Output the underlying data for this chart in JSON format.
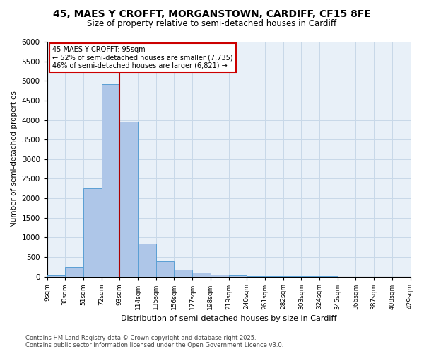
{
  "title_line1": "45, MAES Y CROFFT, MORGANSTOWN, CARDIFF, CF15 8FE",
  "title_line2": "Size of property relative to semi-detached houses in Cardiff",
  "xlabel": "Distribution of semi-detached houses by size in Cardiff",
  "ylabel": "Number of semi-detached properties",
  "footer_line1": "Contains HM Land Registry data © Crown copyright and database right 2025.",
  "footer_line2": "Contains public sector information licensed under the Open Government Licence v3.0.",
  "bin_labels": [
    "9sqm",
    "30sqm",
    "51sqm",
    "72sqm",
    "93sqm",
    "114sqm",
    "135sqm",
    "156sqm",
    "177sqm",
    "198sqm",
    "219sqm",
    "240sqm",
    "261sqm",
    "282sqm",
    "303sqm",
    "324sqm",
    "345sqm",
    "366sqm",
    "387sqm",
    "408sqm",
    "429sqm"
  ],
  "bar_heights": [
    30,
    240,
    2260,
    4920,
    3960,
    850,
    390,
    175,
    105,
    55,
    30,
    15,
    8,
    5,
    3,
    2,
    0,
    0,
    0,
    0
  ],
  "bar_color": "#aec6e8",
  "bar_edge_color": "#5a9fd4",
  "vline_index": 4,
  "vline_color": "#aa0000",
  "annotation_box_color": "#cc0000",
  "property_label": "45 MAES Y CROFFT: 95sqm",
  "pct_smaller": 52,
  "pct_larger": 46,
  "n_smaller": 7735,
  "n_larger": 6821,
  "ylim": [
    0,
    6000
  ],
  "yticks": [
    0,
    500,
    1000,
    1500,
    2000,
    2500,
    3000,
    3500,
    4000,
    4500,
    5000,
    5500,
    6000
  ],
  "grid_color": "#c8d8e8",
  "background_color": "#e8f0f8"
}
